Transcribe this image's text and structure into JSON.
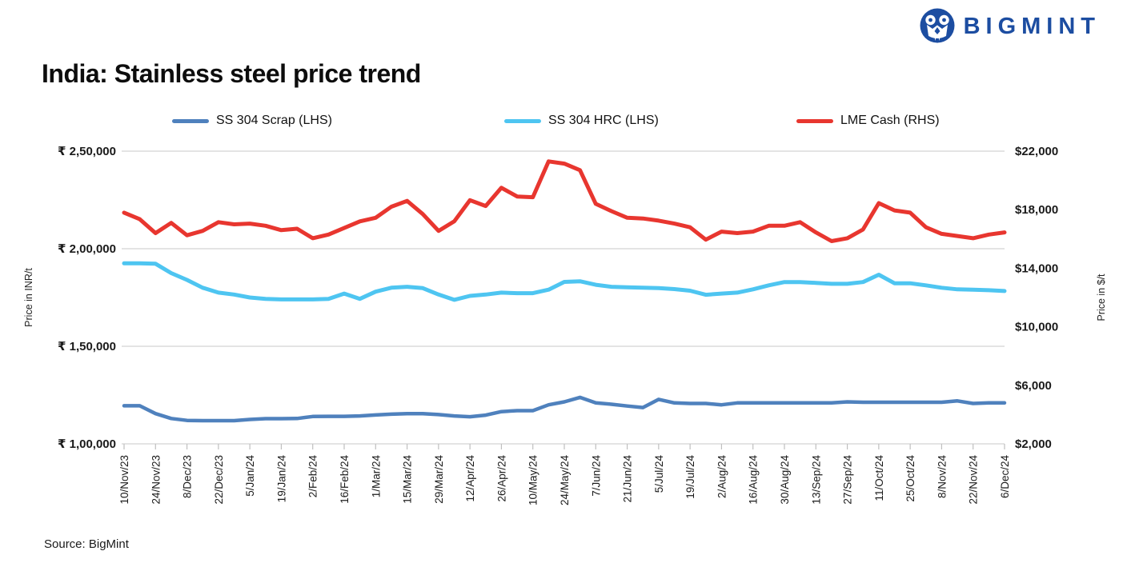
{
  "logo": {
    "text": "BIGMINT",
    "color": "#1C4DA1"
  },
  "title": "India: Stainless steel price trend",
  "source": "Source: BigMint",
  "chart_data": {
    "type": "line",
    "grid": true,
    "legend_position": "top",
    "x_labels": [
      "10/Nov/23",
      "24/Nov/23",
      "8/Dec/23",
      "22/Dec/23",
      "5/Jan/24",
      "19/Jan/24",
      "2/Feb/24",
      "16/Feb/24",
      "1/Mar/24",
      "15/Mar/24",
      "29/Mar/24",
      "12/Apr/24",
      "26/Apr/24",
      "10/May/24",
      "24/May/24",
      "7/Jun/24",
      "21/Jun/24",
      "5/Jul/24",
      "19/Jul/24",
      "2/Aug/24",
      "16/Aug/24",
      "30/Aug/24",
      "13/Sep/24",
      "27/Sep/24",
      "11/Oct/24",
      "25/Oct/24",
      "8/Nov/24",
      "22/Nov/24",
      "6/Dec/24"
    ],
    "points_per_label": 2,
    "left_axis": {
      "label": "Price in INR/t",
      "min": 100000,
      "max": 250000,
      "ticks": [
        "₹ 2,50,000",
        "₹ 2,00,000",
        "₹ 1,50,000",
        "₹ 1,00,000"
      ]
    },
    "right_axis": {
      "label": "Price in $/t",
      "min": 2000,
      "max": 22000,
      "ticks": [
        "$22,000",
        "$18,000",
        "$14,000",
        "$10,000",
        "$6,000",
        "$2,000"
      ]
    },
    "series": [
      {
        "name": "SS 304 Scrap (LHS)",
        "axis": "left",
        "color": "#4F81BD",
        "width": 4.5,
        "values": [
          119500,
          119500,
          115500,
          113000,
          112000,
          111900,
          111900,
          111900,
          112500,
          112900,
          112900,
          113000,
          114000,
          114100,
          114100,
          114300,
          114800,
          115200,
          115500,
          115500,
          115000,
          114300,
          113900,
          114700,
          116500,
          117000,
          117000,
          120000,
          121500,
          123800,
          121000,
          120300,
          119400,
          118600,
          122800,
          121000,
          120700,
          120700,
          120000,
          121000,
          121000,
          121000,
          121000,
          121000,
          121000,
          121000,
          121500,
          121300,
          121300,
          121300,
          121300,
          121300,
          121300,
          122000,
          120700,
          121000,
          121000
        ]
      },
      {
        "name": "SS 304 HRC (LHS)",
        "axis": "left",
        "color": "#4EC5F1",
        "width": 5,
        "values": [
          192500,
          192500,
          192300,
          187500,
          184000,
          180000,
          177500,
          176500,
          175000,
          174300,
          174000,
          174000,
          174000,
          174300,
          177000,
          174300,
          178000,
          180000,
          180500,
          179800,
          176500,
          173800,
          175800,
          176500,
          177500,
          177200,
          177200,
          179000,
          183000,
          183300,
          181500,
          180500,
          180200,
          180000,
          179800,
          179300,
          178500,
          176400,
          177000,
          177500,
          179200,
          181250,
          182900,
          182900,
          182500,
          182000,
          182000,
          182900,
          186700,
          182300,
          182300,
          181250,
          180000,
          179200,
          179000,
          178750,
          178300
        ]
      },
      {
        "name": "LME Cash (RHS)",
        "axis": "right",
        "color": "#E8362F",
        "width": 5,
        "values": [
          17800,
          17350,
          16400,
          17100,
          16250,
          16550,
          17150,
          17000,
          17050,
          16900,
          16600,
          16700,
          16050,
          16300,
          16750,
          17200,
          17450,
          18200,
          18600,
          17700,
          16550,
          17200,
          18650,
          18250,
          19500,
          18900,
          18850,
          21300,
          21150,
          20700,
          18400,
          17900,
          17450,
          17400,
          17250,
          17050,
          16800,
          15950,
          16500,
          16400,
          16500,
          16900,
          16900,
          17150,
          16450,
          15850,
          16050,
          16650,
          18450,
          17950,
          17800,
          16800,
          16350,
          16200,
          16050,
          16300,
          16450
        ]
      }
    ]
  }
}
